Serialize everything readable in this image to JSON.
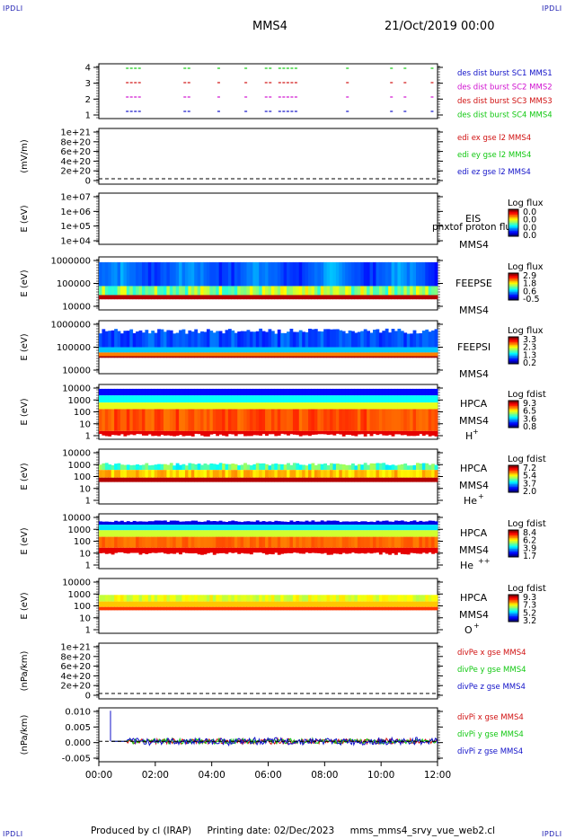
{
  "corner_labels": [
    "IPDLI",
    "IPDLI",
    "IPDLI",
    "IPDLI"
  ],
  "header": {
    "spacecraft": "MMS4",
    "date": "21/Oct/2019 00:00"
  },
  "x_axis": {
    "ticks": [
      "00:00",
      "02:00",
      "04:00",
      "06:00",
      "08:00",
      "10:00",
      "12:00"
    ]
  },
  "footer": {
    "produced": "Produced by cl (IRAP)",
    "printed": "Printing date: 02/Dec/2023",
    "file": "mms_mms4_srvy_vue_web2.cl"
  },
  "chart_data": [
    {
      "type": "scatter",
      "name": "burst",
      "xlabel": "",
      "ylabel": "",
      "xlim": [
        "00:00",
        "12:00"
      ],
      "yticks": [
        "1",
        "2",
        "3",
        "4"
      ],
      "legend": [
        {
          "label": "des dist burst SC1 MMS1",
          "color": "#1010c8"
        },
        {
          "label": "des dist burst SC2 MMS2",
          "color": "#d010d0"
        },
        {
          "label": "des dist burst SC3 MMS3",
          "color": "#d01010"
        },
        {
          "label": "des dist burst SC4 MMS4",
          "color": "#10c810"
        }
      ]
    },
    {
      "type": "line",
      "name": "edi",
      "ylabel": "(mV/m)",
      "yticks": [
        "1e+21",
        "8e+20",
        "6e+20",
        "4e+20",
        "2e+20",
        "0"
      ],
      "legend": [
        {
          "label": "edi ex gse l2 MMS4",
          "color": "#d01010"
        },
        {
          "label": "edi ey gse l2 MMS4",
          "color": "#10c810"
        },
        {
          "label": "edi ez gse l2 MMS4",
          "color": "#1010c8"
        }
      ]
    },
    {
      "type": "heatmap",
      "name": "eis",
      "ylabel": "E (eV)",
      "yticks": [
        "1e+07",
        "1e+06",
        "1e+05",
        "1e+04"
      ],
      "instrument": "EIS",
      "spacecraft": "MMS4",
      "species": "phxtof proton flux",
      "colorbar": {
        "title": "Log flux",
        "ticks": [
          "0.0",
          "0.0",
          "0.0",
          "0.0"
        ]
      }
    },
    {
      "type": "heatmap",
      "name": "feepse",
      "ylabel": "E (eV)",
      "yticks": [
        "1000000",
        "100000",
        "10000"
      ],
      "instrument": "FEEPSE",
      "spacecraft": "MMS4",
      "colorbar": {
        "title": "Log flux",
        "ticks": [
          "2.9",
          "1.8",
          "0.6",
          "-0.5"
        ]
      }
    },
    {
      "type": "heatmap",
      "name": "feepsi",
      "ylabel": "E (eV)",
      "yticks": [
        "1000000",
        "100000",
        "10000"
      ],
      "instrument": "FEEPSI",
      "spacecraft": "MMS4",
      "colorbar": {
        "title": "Log flux",
        "ticks": [
          "3.3",
          "2.3",
          "1.3",
          "0.2"
        ]
      }
    },
    {
      "type": "heatmap",
      "name": "hpca-h",
      "ylabel": "E (eV)",
      "yticks": [
        "10000",
        "1000",
        "100",
        "10",
        "1"
      ],
      "instrument": "HPCA",
      "spacecraft": "MMS4",
      "species": "H",
      "charge": "+",
      "colorbar": {
        "title": "Log fdist",
        "ticks": [
          "9.3",
          "6.5",
          "3.6",
          "0.8"
        ]
      }
    },
    {
      "type": "heatmap",
      "name": "hpca-he",
      "ylabel": "E (eV)",
      "yticks": [
        "10000",
        "1000",
        "100",
        "10",
        "1"
      ],
      "instrument": "HPCA",
      "spacecraft": "MMS4",
      "species": "He",
      "charge": "+",
      "colorbar": {
        "title": "Log fdist",
        "ticks": [
          "7.2",
          "5.4",
          "3.7",
          "2.0"
        ]
      }
    },
    {
      "type": "heatmap",
      "name": "hpca-he2",
      "ylabel": "E (eV)",
      "yticks": [
        "10000",
        "1000",
        "100",
        "10",
        "1"
      ],
      "instrument": "HPCA",
      "spacecraft": "MMS4",
      "species": "He",
      "charge": "++",
      "colorbar": {
        "title": "Log fdist",
        "ticks": [
          "8.4",
          "6.2",
          "3.9",
          "1.7"
        ]
      }
    },
    {
      "type": "heatmap",
      "name": "hpca-o",
      "ylabel": "E (eV)",
      "yticks": [
        "10000",
        "1000",
        "100",
        "10",
        "1"
      ],
      "instrument": "HPCA",
      "spacecraft": "MMS4",
      "species": "O",
      "charge": "+",
      "colorbar": {
        "title": "Log fdist",
        "ticks": [
          "9.3",
          "7.3",
          "5.2",
          "3.2"
        ]
      }
    },
    {
      "type": "line",
      "name": "divpe",
      "ylabel": "(nPa/km)",
      "yticks": [
        "1e+21",
        "8e+20",
        "6e+20",
        "4e+20",
        "2e+20",
        "0"
      ],
      "legend": [
        {
          "label": "divPe x gse MMS4",
          "color": "#d01010"
        },
        {
          "label": "divPe y gse MMS4",
          "color": "#10c810"
        },
        {
          "label": "divPe z gse MMS4",
          "color": "#1010c8"
        }
      ]
    },
    {
      "type": "line",
      "name": "divpi",
      "ylabel": "(nPa/km)",
      "yticks": [
        "0.010",
        "0.005",
        "0.000",
        "-0.005"
      ],
      "ylim": [
        -0.007,
        0.0115
      ],
      "legend": [
        {
          "label": "divPi x gse MMS4",
          "color": "#d01010"
        },
        {
          "label": "divPi y gse MMS4",
          "color": "#10c810"
        },
        {
          "label": "divPi z gse MMS4",
          "color": "#1010c8"
        }
      ]
    }
  ]
}
